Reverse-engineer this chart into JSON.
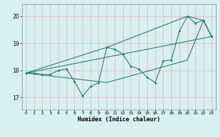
{
  "xlabel": "Humidex (Indice chaleur)",
  "bg_color": "#d8f0ee",
  "grid_color": "#c8e8e4",
  "line_color": "#2a7a70",
  "xlim": [
    -0.5,
    23.5
  ],
  "ylim": [
    16.55,
    20.45
  ],
  "yticks": [
    17,
    18,
    19,
    20
  ],
  "xticks": [
    0,
    1,
    2,
    3,
    4,
    5,
    6,
    7,
    8,
    9,
    10,
    11,
    12,
    13,
    14,
    15,
    16,
    17,
    18,
    19,
    20,
    21,
    22,
    23
  ],
  "main_x": [
    0,
    1,
    2,
    3,
    4,
    5,
    6,
    7,
    8,
    9,
    10,
    11,
    12,
    13,
    14,
    15,
    16,
    17,
    18,
    19,
    20,
    21,
    22,
    23
  ],
  "main_y": [
    17.9,
    17.9,
    17.85,
    17.85,
    18.0,
    18.05,
    17.6,
    17.05,
    17.4,
    17.55,
    18.85,
    18.78,
    18.6,
    18.15,
    18.05,
    17.75,
    17.55,
    18.35,
    18.38,
    19.45,
    20.0,
    19.75,
    19.85,
    19.25
  ],
  "top_env_x": [
    0,
    10,
    20,
    22,
    23
  ],
  "top_env_y": [
    17.9,
    18.85,
    20.0,
    19.85,
    19.25
  ],
  "bot_env_x": [
    0,
    10,
    20,
    22,
    23
  ],
  "bot_env_y": [
    17.9,
    17.55,
    18.38,
    19.85,
    19.25
  ],
  "trend_x": [
    0,
    23
  ],
  "trend_y": [
    17.9,
    19.25
  ]
}
